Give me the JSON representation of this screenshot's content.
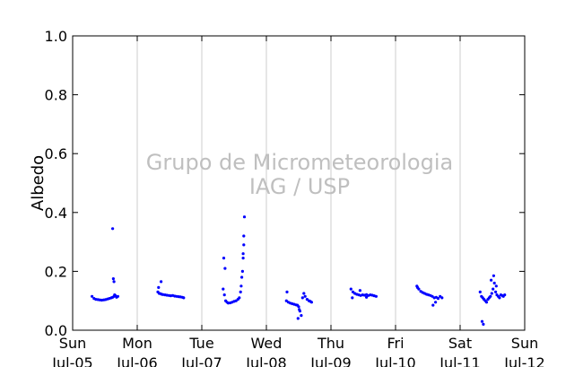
{
  "chart_data": {
    "type": "scatter",
    "title": "",
    "xlabel": "",
    "ylabel": "Albedo",
    "ylim": [
      0,
      1
    ],
    "yticks": [
      "0.0",
      "0.2",
      "0.4",
      "0.6",
      "0.8",
      "1.0"
    ],
    "x_unit": "days since Sun Jul-05 00:00",
    "xlim": [
      0,
      7
    ],
    "xticks": [
      {
        "day": "Sun",
        "date": "Jul-05"
      },
      {
        "day": "Mon",
        "date": "Jul-06"
      },
      {
        "day": "Tue",
        "date": "Jul-07"
      },
      {
        "day": "Wed",
        "date": "Jul-08"
      },
      {
        "day": "Thu",
        "date": "Jul-09"
      },
      {
        "day": "Fri",
        "date": "Jul-10"
      },
      {
        "day": "Sat",
        "date": "Jul-11"
      },
      {
        "day": "Sun",
        "date": "Jul-12"
      }
    ],
    "grid": "vertical",
    "series": [
      {
        "color": "#0000ff",
        "x": [
          0.3,
          0.33,
          0.36,
          0.39,
          0.42,
          0.45,
          0.48,
          0.51,
          0.54,
          0.57,
          0.6,
          0.62,
          0.64,
          0.66,
          0.68,
          0.7,
          0.62,
          0.63,
          0.64,
          0.65,
          1.32,
          1.34,
          1.36,
          1.38,
          1.4,
          1.43,
          1.46,
          1.49,
          1.52,
          1.55,
          1.58,
          1.61,
          1.64,
          1.67,
          1.7,
          1.72,
          1.33,
          1.37,
          2.33,
          2.35,
          2.37,
          2.39,
          2.41,
          2.44,
          2.47,
          2.5,
          2.53,
          2.56,
          2.58,
          2.6,
          2.61,
          2.62,
          2.63,
          2.64,
          2.64,
          2.65,
          2.65,
          2.66,
          2.34,
          2.36,
          3.31,
          3.34,
          3.37,
          3.4,
          3.43,
          3.46,
          3.48,
          3.5,
          3.52,
          3.54,
          3.56,
          3.58,
          3.6,
          3.63,
          3.66,
          3.68,
          3.7,
          3.32,
          3.49,
          3.51,
          4.31,
          4.34,
          4.37,
          4.4,
          4.43,
          4.46,
          4.49,
          4.52,
          4.55,
          4.58,
          4.61,
          4.64,
          4.67,
          4.7,
          4.33,
          4.45,
          4.55,
          5.33,
          5.36,
          5.39,
          5.42,
          5.45,
          5.48,
          5.51,
          5.54,
          5.57,
          5.6,
          5.63,
          5.66,
          5.69,
          5.72,
          5.34,
          5.58,
          5.62,
          6.31,
          6.33,
          6.35,
          6.37,
          6.39,
          6.41,
          6.43,
          6.45,
          6.47,
          6.49,
          6.51,
          6.53,
          6.55,
          6.57,
          6.59,
          6.61,
          6.63,
          6.65,
          6.67,
          6.69,
          6.34,
          6.36,
          6.48,
          6.52,
          6.56
        ],
        "y": [
          0.115,
          0.108,
          0.105,
          0.104,
          0.103,
          0.102,
          0.103,
          0.104,
          0.106,
          0.108,
          0.11,
          0.112,
          0.115,
          0.118,
          0.112,
          0.115,
          0.345,
          0.175,
          0.165,
          0.12,
          0.13,
          0.125,
          0.124,
          0.122,
          0.121,
          0.12,
          0.119,
          0.118,
          0.117,
          0.118,
          0.116,
          0.115,
          0.114,
          0.113,
          0.112,
          0.11,
          0.145,
          0.165,
          0.14,
          0.12,
          0.1,
          0.095,
          0.092,
          0.093,
          0.095,
          0.098,
          0.1,
          0.105,
          0.11,
          0.13,
          0.15,
          0.18,
          0.2,
          0.245,
          0.26,
          0.29,
          0.32,
          0.385,
          0.245,
          0.21,
          0.1,
          0.095,
          0.092,
          0.09,
          0.088,
          0.086,
          0.085,
          0.08,
          0.065,
          0.05,
          0.11,
          0.125,
          0.115,
          0.105,
          0.1,
          0.098,
          0.095,
          0.13,
          0.04,
          0.07,
          0.14,
          0.13,
          0.125,
          0.122,
          0.12,
          0.118,
          0.12,
          0.119,
          0.121,
          0.118,
          0.12,
          0.119,
          0.117,
          0.115,
          0.11,
          0.135,
          0.112,
          0.15,
          0.14,
          0.132,
          0.128,
          0.125,
          0.122,
          0.12,
          0.118,
          0.115,
          0.11,
          0.112,
          0.108,
          0.115,
          0.11,
          0.145,
          0.085,
          0.095,
          0.13,
          0.115,
          0.11,
          0.105,
          0.1,
          0.095,
          0.105,
          0.11,
          0.115,
          0.125,
          0.14,
          0.16,
          0.13,
          0.12,
          0.115,
          0.11,
          0.12,
          0.118,
          0.115,
          0.12,
          0.03,
          0.02,
          0.17,
          0.185,
          0.15
        ]
      }
    ],
    "watermark": [
      "Grupo de Micrometeorologia",
      "IAG / USP"
    ]
  }
}
